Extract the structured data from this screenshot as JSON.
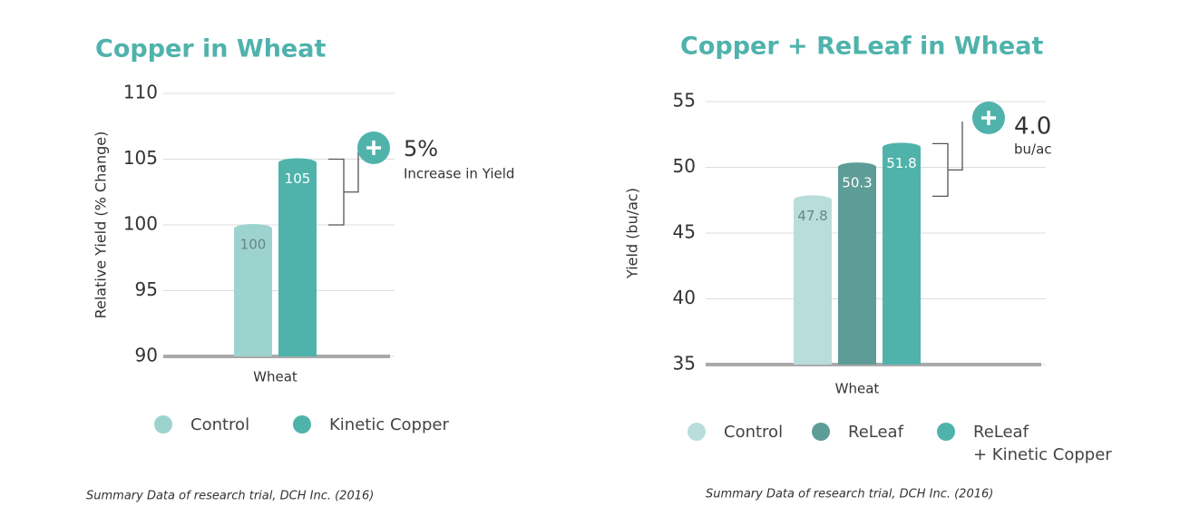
{
  "chart_data": [
    {
      "type": "bar",
      "title": "Copper in Wheat",
      "y_label": "Relative Yield (% Change)",
      "categories": [
        "Wheat"
      ],
      "series": [
        {
          "name": "Control",
          "color": "#9dd3ce",
          "values": [
            100
          ]
        },
        {
          "name": "Kinetic Copper",
          "color": "#4fb3ac",
          "values": [
            105
          ]
        }
      ],
      "ylim": [
        90,
        110
      ],
      "yticks": [
        90,
        95,
        100,
        105,
        110
      ],
      "grid": true,
      "annotation": {
        "value": "5%",
        "text": "Increase in Yield"
      },
      "source": "Summary Data of research trial, DCH Inc. (2016)"
    },
    {
      "type": "bar",
      "title": "Copper + ReLeaf in Wheat",
      "y_label": "Yield (bu/ac)",
      "categories": [
        "Wheat"
      ],
      "series": [
        {
          "name": "Control",
          "color": "#b8dddb",
          "values": [
            47.8
          ]
        },
        {
          "name": "ReLeaf",
          "color": "#5e9c97",
          "values": [
            50.3
          ]
        },
        {
          "name": "ReLeaf\n+ Kinetic Copper",
          "color": "#4fb3ac",
          "values": [
            51.8
          ]
        }
      ],
      "ylim": [
        35,
        55
      ],
      "yticks": [
        35,
        40,
        45,
        50,
        55
      ],
      "grid": true,
      "annotation": {
        "value": "4.0",
        "text": "bu/ac"
      },
      "source": "Summary Data of research trial, DCH Inc. (2016)"
    }
  ]
}
